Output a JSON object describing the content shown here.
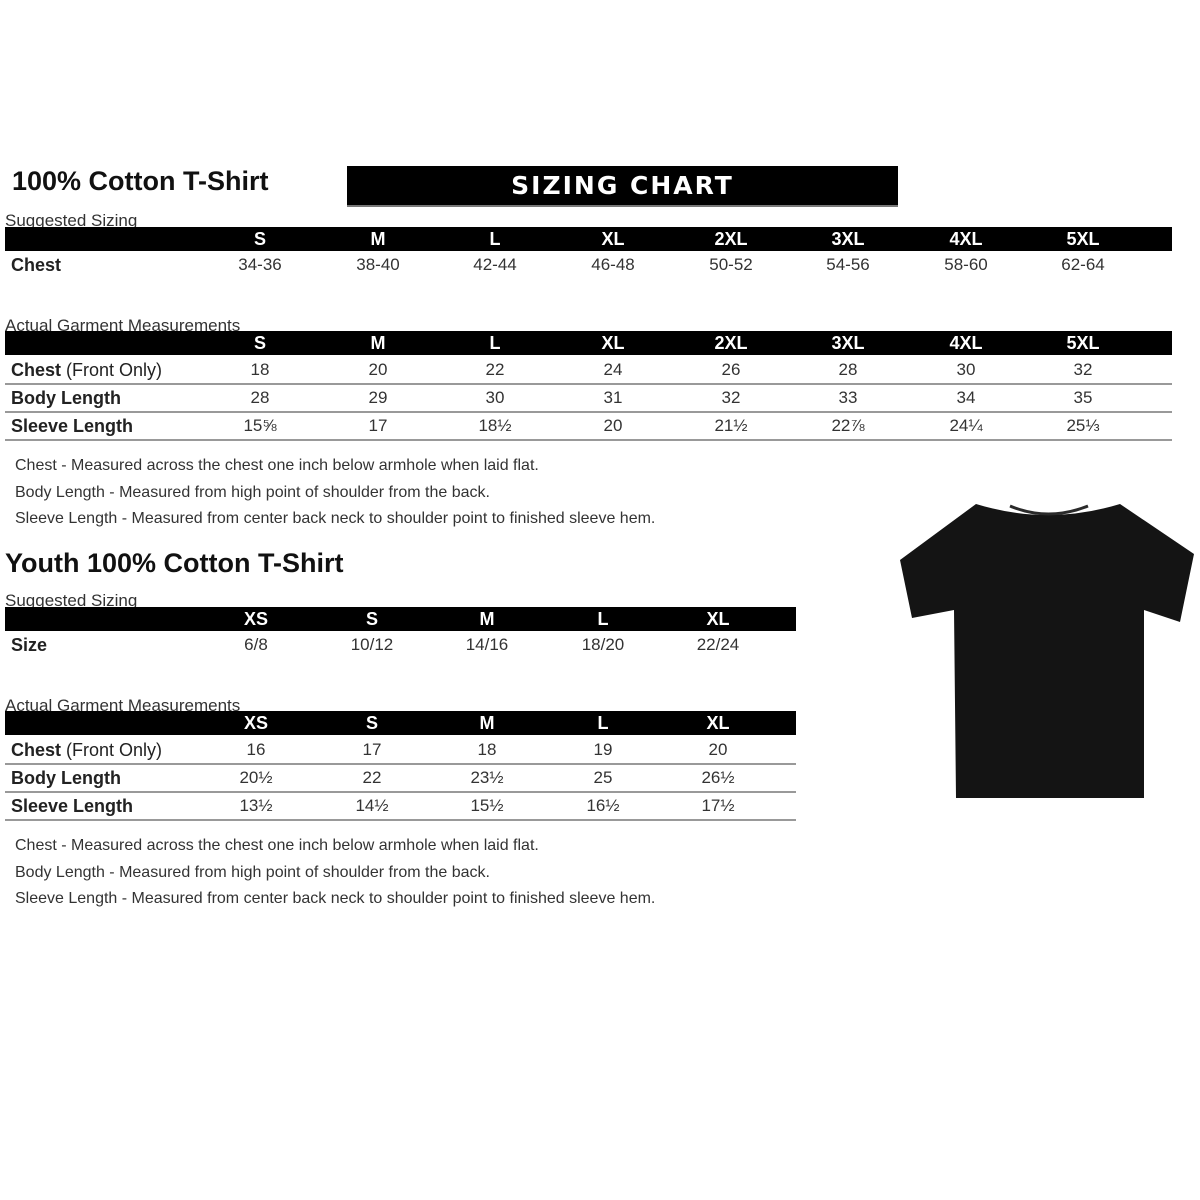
{
  "adult": {
    "title": "100% Cotton T-Shirt",
    "banner": "SIZING CHART",
    "suggested_label": "Suggested Sizing",
    "sizes": [
      "S",
      "M",
      "L",
      "XL",
      "2XL",
      "3XL",
      "4XL",
      "5XL"
    ],
    "suggested_rows": [
      {
        "label": "Chest",
        "values": [
          "34-36",
          "38-40",
          "42-44",
          "46-48",
          "50-52",
          "54-56",
          "58-60",
          "62-64"
        ]
      }
    ],
    "actual_label": "Actual Garment Measurements",
    "actual_rows": [
      {
        "label": "Chest",
        "sub": " (Front Only)",
        "values": [
          "18",
          "20",
          "22",
          "24",
          "26",
          "28",
          "30",
          "32"
        ]
      },
      {
        "label": "Body Length",
        "values": [
          "28",
          "29",
          "30",
          "31",
          "32",
          "33",
          "34",
          "35"
        ]
      },
      {
        "label": "Sleeve Length",
        "values": [
          "15⅝",
          "17",
          "18½",
          "20",
          "21½",
          "22⅞",
          "24¼",
          "25⅓"
        ]
      }
    ],
    "notes": [
      "Chest - Measured across the chest one inch below armhole when laid flat.",
      "Body Length - Measured from high point of shoulder from the back.",
      "Sleeve Length - Measured from center back neck to shoulder point to finished sleeve hem."
    ]
  },
  "youth": {
    "title": "Youth 100% Cotton T-Shirt",
    "suggested_label": "Suggested Sizing",
    "sizes": [
      "XS",
      "S",
      "M",
      "L",
      "XL"
    ],
    "suggested_rows": [
      {
        "label": "Size",
        "values": [
          "6/8",
          "10/12",
          "14/16",
          "18/20",
          "22/24"
        ]
      }
    ],
    "actual_label": "Actual Garment Measurements",
    "actual_rows": [
      {
        "label": "Chest",
        "sub": " (Front Only)",
        "values": [
          "16",
          "17",
          "18",
          "19",
          "20"
        ]
      },
      {
        "label": "Body Length",
        "values": [
          "20½",
          "22",
          "23½",
          "25",
          "26½"
        ]
      },
      {
        "label": "Sleeve Length",
        "values": [
          "13½",
          "14½",
          "15½",
          "16½",
          "17½"
        ]
      }
    ],
    "notes": [
      "Chest - Measured across the chest one inch below armhole when laid flat.",
      "Body Length - Measured from high point of shoulder from the back.",
      "Sleeve Length - Measured from center back neck to shoulder point to finished sleeve hem."
    ]
  },
  "image": {
    "icon": "tshirt-icon",
    "color": "#141414"
  }
}
